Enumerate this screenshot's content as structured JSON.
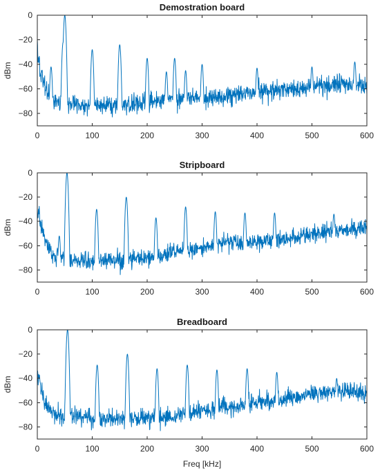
{
  "chart_data": [
    {
      "type": "line",
      "title": "Demostration board",
      "xlabel": "",
      "ylabel": "dBm",
      "xlim": [
        0,
        600
      ],
      "ylim": [
        -90,
        0
      ],
      "xticks": [
        0,
        100,
        200,
        300,
        400,
        500,
        600
      ],
      "yticks": [
        0,
        -20,
        -40,
        -60,
        -80
      ],
      "grid": false,
      "color": "#0072BD",
      "noise_floor": [
        [
          0,
          -25
        ],
        [
          5,
          -45
        ],
        [
          15,
          -60
        ],
        [
          30,
          -70
        ],
        [
          100,
          -74
        ],
        [
          150,
          -74
        ],
        [
          200,
          -70
        ],
        [
          250,
          -68
        ],
        [
          300,
          -68
        ],
        [
          350,
          -66
        ],
        [
          400,
          -62
        ],
        [
          450,
          -60
        ],
        [
          500,
          -58
        ],
        [
          550,
          -55
        ],
        [
          600,
          -58
        ]
      ],
      "peaks": [
        {
          "x": 25,
          "y": -42
        },
        {
          "x": 47,
          "y": -22
        },
        {
          "x": 50,
          "y": 0
        },
        {
          "x": 100,
          "y": -28
        },
        {
          "x": 150,
          "y": -24
        },
        {
          "x": 200,
          "y": -35
        },
        {
          "x": 235,
          "y": -46
        },
        {
          "x": 250,
          "y": -35
        },
        {
          "x": 270,
          "y": -45
        },
        {
          "x": 300,
          "y": -40
        },
        {
          "x": 400,
          "y": -43
        },
        {
          "x": 500,
          "y": -42
        },
        {
          "x": 578,
          "y": -38
        }
      ]
    },
    {
      "type": "line",
      "title": "Stripboard",
      "xlabel": "",
      "ylabel": "dBm",
      "xlim": [
        0,
        600
      ],
      "ylim": [
        -90,
        0
      ],
      "xticks": [
        0,
        100,
        200,
        300,
        400,
        500,
        600
      ],
      "yticks": [
        0,
        -20,
        -40,
        -60,
        -80
      ],
      "grid": false,
      "color": "#0072BD",
      "noise_floor": [
        [
          0,
          -30
        ],
        [
          5,
          -40
        ],
        [
          15,
          -58
        ],
        [
          30,
          -70
        ],
        [
          80,
          -73
        ],
        [
          150,
          -72
        ],
        [
          200,
          -70
        ],
        [
          250,
          -66
        ],
        [
          300,
          -62
        ],
        [
          350,
          -58
        ],
        [
          400,
          -57
        ],
        [
          450,
          -55
        ],
        [
          500,
          -50
        ],
        [
          550,
          -48
        ],
        [
          600,
          -45
        ]
      ],
      "peaks": [
        {
          "x": 40,
          "y": -52
        },
        {
          "x": 54,
          "y": 0
        },
        {
          "x": 108,
          "y": -30
        },
        {
          "x": 162,
          "y": -20
        },
        {
          "x": 216,
          "y": -37
        },
        {
          "x": 270,
          "y": -28
        },
        {
          "x": 324,
          "y": -32
        },
        {
          "x": 378,
          "y": -33
        },
        {
          "x": 432,
          "y": -33
        },
        {
          "x": 540,
          "y": -34
        }
      ]
    },
    {
      "type": "line",
      "title": "Breadboard",
      "xlabel": "Freq [kHz]",
      "ylabel": "dBm",
      "xlim": [
        0,
        600
      ],
      "ylim": [
        -90,
        0
      ],
      "xticks": [
        0,
        100,
        200,
        300,
        400,
        500,
        600
      ],
      "yticks": [
        0,
        -20,
        -40,
        -60,
        -80
      ],
      "grid": false,
      "color": "#0072BD",
      "noise_floor": [
        [
          0,
          -30
        ],
        [
          5,
          -45
        ],
        [
          15,
          -62
        ],
        [
          30,
          -70
        ],
        [
          100,
          -73
        ],
        [
          150,
          -73
        ],
        [
          200,
          -73
        ],
        [
          250,
          -72
        ],
        [
          300,
          -68
        ],
        [
          350,
          -64
        ],
        [
          400,
          -60
        ],
        [
          450,
          -58
        ],
        [
          500,
          -52
        ],
        [
          550,
          -50
        ],
        [
          600,
          -52
        ]
      ],
      "peaks": [
        {
          "x": 55,
          "y": 0
        },
        {
          "x": 109,
          "y": -29
        },
        {
          "x": 164,
          "y": -20
        },
        {
          "x": 218,
          "y": -32
        },
        {
          "x": 273,
          "y": -29
        },
        {
          "x": 327,
          "y": -33
        },
        {
          "x": 382,
          "y": -32
        },
        {
          "x": 436,
          "y": -35
        },
        {
          "x": 545,
          "y": -40
        }
      ]
    }
  ]
}
